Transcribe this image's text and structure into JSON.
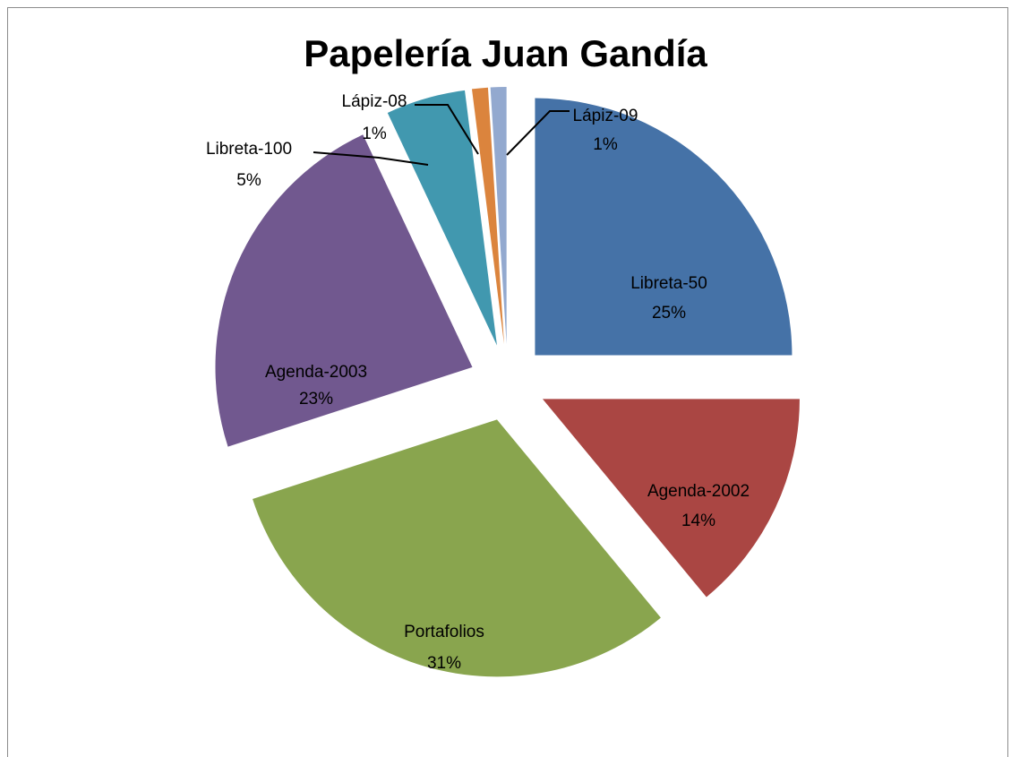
{
  "chart_data": {
    "type": "pie",
    "title": "Papelería Juan Gandía",
    "exploded": true,
    "slices": [
      {
        "name": "Libreta-50",
        "value": 25,
        "label": "25%",
        "color": "#4572A7"
      },
      {
        "name": "Agenda-2002",
        "value": 14,
        "label": "14%",
        "color": "#AA4643"
      },
      {
        "name": "Portafolios",
        "value": 31,
        "label": "31%",
        "color": "#89A54E"
      },
      {
        "name": "Agenda-2003",
        "value": 23,
        "label": "23%",
        "color": "#71588F"
      },
      {
        "name": "Libreta-100",
        "value": 5,
        "label": "5%",
        "color": "#4198AF"
      },
      {
        "name": "Lápiz-08",
        "value": 1,
        "label": "1%",
        "color": "#DB843D"
      },
      {
        "name": "Lápiz-09",
        "value": 1,
        "label": "1%",
        "color": "#93A9CF"
      }
    ]
  }
}
